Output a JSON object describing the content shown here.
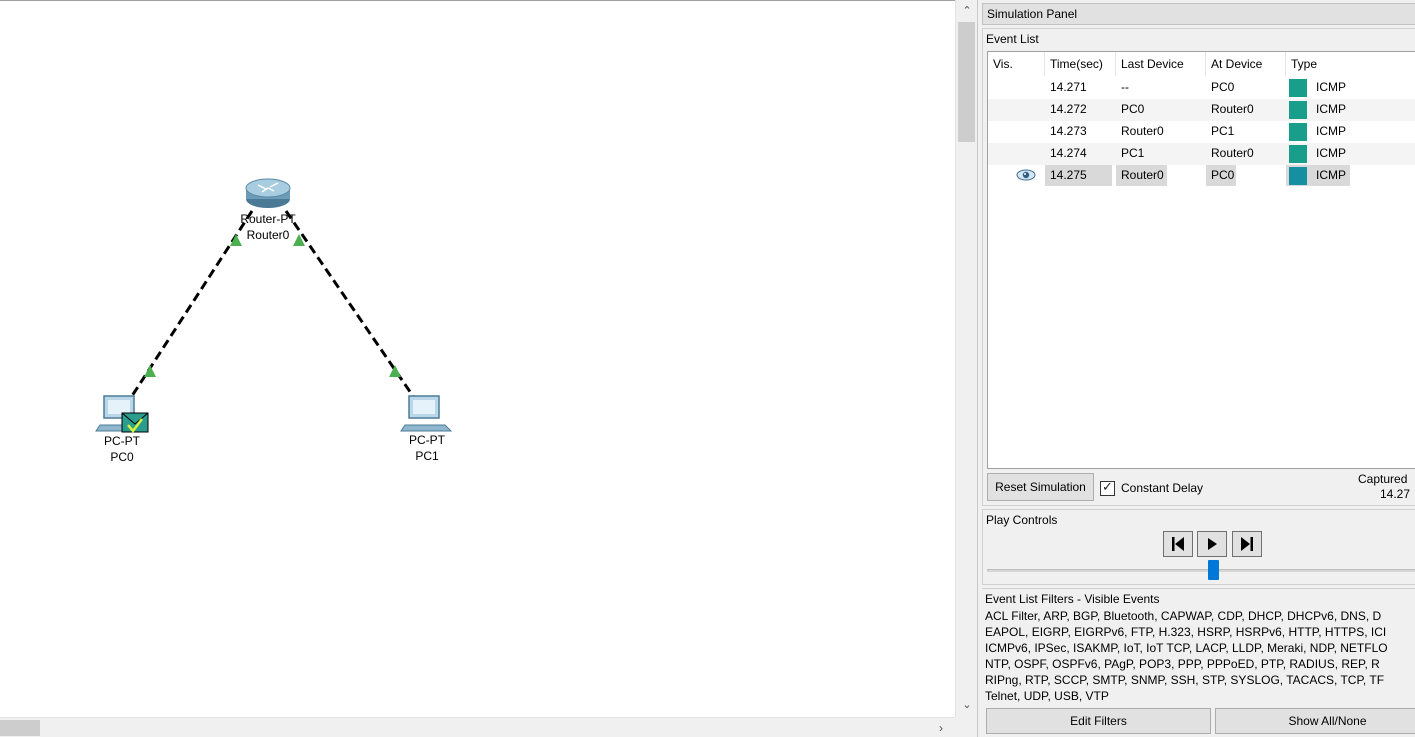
{
  "workspace": {
    "devices": [
      {
        "type": "Router-PT",
        "name": "Router0"
      },
      {
        "type": "PC-PT",
        "name": "PC0"
      },
      {
        "type": "PC-PT",
        "name": "PC1"
      }
    ],
    "link_color": "#000000",
    "link_indicator_color": "#4caf50"
  },
  "sim_panel": {
    "title": "Simulation Panel",
    "event_list": {
      "label": "Event List",
      "headers": [
        "Vis.",
        "Time(sec)",
        "Last Device",
        "At Device",
        "Type"
      ],
      "rows": [
        {
          "vis": "",
          "time": "14.271",
          "last": "--",
          "at": "PC0",
          "type": "ICMP",
          "color": "#1a9e8c"
        },
        {
          "vis": "",
          "time": "14.272",
          "last": "PC0",
          "at": "Router0",
          "type": "ICMP",
          "color": "#1a9e8c"
        },
        {
          "vis": "",
          "time": "14.273",
          "last": "Router0",
          "at": "PC1",
          "type": "ICMP",
          "color": "#1a9e8c"
        },
        {
          "vis": "",
          "time": "14.274",
          "last": "PC1",
          "at": "Router0",
          "type": "ICMP",
          "color": "#1a9e8c"
        },
        {
          "vis": "eye-icon",
          "time": "14.275",
          "last": "Router0",
          "at": "PC0",
          "type": "ICMP",
          "color": "#168fa0"
        }
      ]
    },
    "reset_label": "Reset Simulation",
    "constant_delay_label": "Constant Delay",
    "constant_delay_checked": true,
    "captured_label": "Captured",
    "captured_value": "14.27",
    "play_controls": {
      "label": "Play Controls"
    },
    "filters": {
      "label": "Event List Filters - Visible Events",
      "lines": [
        "ACL Filter, ARP, BGP, Bluetooth, CAPWAP, CDP, DHCP, DHCPv6, DNS, D",
        "EAPOL, EIGRP, EIGRPv6, FTP, H.323, HSRP, HSRPv6, HTTP, HTTPS, ICI",
        "ICMPv6, IPSec, ISAKMP, IoT, IoT TCP, LACP, LLDP, Meraki, NDP, NETFLO",
        "NTP, OSPF, OSPFv6, PAgP, POP3, PPP, PPPoED, PTP, RADIUS, REP, R",
        "RIPng, RTP, SCCP, SMTP, SNMP, SSH, STP, SYSLOG, TACACS, TCP, TF",
        "Telnet, UDP, USB, VTP"
      ],
      "edit_label": "Edit Filters",
      "show_all_label": "Show All/None"
    }
  }
}
